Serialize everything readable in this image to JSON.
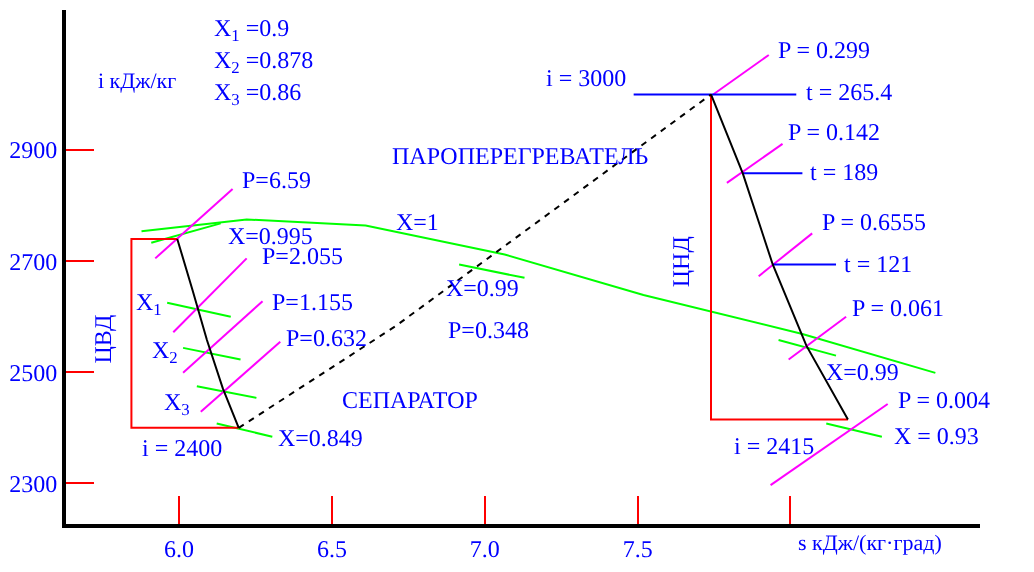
{
  "chart_data": {
    "type": "line",
    "xlabel": "s кДж/(кг·град)",
    "ylabel": "i кДж/кг",
    "xlim": [
      5.63,
      8.62
    ],
    "ylim": [
      2227,
      3152
    ],
    "xticks": [
      {
        "value": 6,
        "label": "6.0"
      },
      6.5,
      {
        "value": 7,
        "label": "7.0"
      },
      7.5,
      {
        "value": 8,
        "label": null
      }
    ],
    "yticks": [
      2300,
      2500,
      2700,
      2900
    ],
    "marker": "none",
    "series": [
      {
        "color": "#00ff00",
        "x": [
          5.877,
          6.221,
          6.61,
          7.065,
          7.519,
          8.039,
          8.474
        ],
        "values": [
          2754,
          2775,
          2764,
          2712,
          2639,
          2569,
          2499
        ]
      },
      {
        "color": "#00ff00",
        "x": [
          5.909,
          6.136,
          null,
          5.961,
          6.169,
          null,
          6.013,
          6.201,
          null,
          6.058,
          6.253,
          null,
          6.123,
          6.305,
          null,
          6.916,
          7.13,
          null,
          7.961,
          8.149,
          null,
          8.117,
          8.299
        ],
        "values": [
          2733,
          2768,
          null,
          2625,
          2600,
          null,
          2544,
          2523,
          null,
          2475,
          2454,
          null,
          2408,
          2384,
          null,
          2694,
          2670,
          null,
          2558,
          2530,
          null,
          2408,
          2384
        ]
      },
      {
        "color": "#ff00ff",
        "x": [
          5.922,
          6.175,
          null,
          5.981,
          6.221,
          null,
          6.013,
          6.273,
          null,
          6.071,
          6.331,
          null,
          7.747,
          7.929,
          null,
          7.792,
          7.974,
          null,
          7.896,
          8.071,
          null,
          7.994,
          8.182,
          null,
          7.935,
          8.318
        ],
        "values": [
          2705,
          2830,
          null,
          2572,
          2705,
          null,
          2499,
          2628,
          null,
          2429,
          2555,
          null,
          3000,
          3071,
          null,
          2841,
          2911,
          null,
          2673,
          2750,
          null,
          2523,
          2600,
          null,
          2297,
          2443
        ]
      },
      {
        "color": "#0000ff",
        "x": [
          7.487,
          8.019,
          null,
          7.844,
          8.039,
          null,
          7.942,
          8.149
        ],
        "values": [
          3000,
          3000,
          null,
          2858,
          2858,
          null,
          2694,
          2694
        ]
      },
      {
        "color": "#ff0000",
        "x": [
          5.994,
          5.844,
          5.844,
          6.195
        ],
        "values": [
          2740,
          2740,
          2400,
          2400
        ]
      },
      {
        "color": "#ff0000",
        "x": [
          7.74,
          7.74,
          8.188
        ],
        "values": [
          3000,
          2415,
          2415
        ]
      },
      {
        "color": "#000000",
        "x": [
          5.994,
          6.045,
          6.091,
          6.143,
          6.195
        ],
        "values": [
          2740,
          2646,
          2558,
          2471,
          2400
        ]
      },
      {
        "color": "#000000",
        "x": [
          7.74,
          7.844,
          7.942,
          8.052,
          8.188
        ],
        "values": [
          3000,
          2858,
          2694,
          2548,
          2415
        ]
      },
      {
        "color": "#000000",
        "line_style": "dotted",
        "x": [
          6.195,
          6.708,
          7.74
        ],
        "values": [
          2400,
          2583,
          3000
        ]
      }
    ],
    "annotations": [
      "X$_{1}$ =0.9",
      "X$_{2}$ =0.878",
      "X$_{3}$ =0.86",
      "ПАРОПЕРЕГРЕВАТЕЛЬ",
      "СЕПАРАТОР",
      {
        "text": "X=1",
        "x": 6.61,
        "y": 2764
      },
      {
        "text": "P=6.59",
        "x": 6.175,
        "y": 2830
      },
      {
        "text": "X=0.995",
        "x": 6.136,
        "y": 2768
      },
      {
        "text": "P=2.055",
        "x": 6.221,
        "y": 2705
      },
      {
        "text": "X$_{1}$",
        "x": 5.961,
        "y": 2625
      },
      {
        "text": "P=1.155",
        "x": 6.273,
        "y": 2628
      },
      {
        "text": "X$_{2}$",
        "x": 6.013,
        "y": 2544
      },
      {
        "text": "P=0.632",
        "x": 6.331,
        "y": 2555
      },
      {
        "text": "X$_{3}$",
        "x": 6.058,
        "y": 2475
      },
      {
        "text": "X=0.849",
        "x": 6.305,
        "y": 2384
      },
      {
        "text": "i = 2400",
        "x": 5.844,
        "y": 2400
      },
      {
        "text": "P=0.348",
        "x": 6.708,
        "y": 2583
      },
      {
        "text": "X=0.99",
        "x": 7.13,
        "y": 2670
      },
      {
        "text": "ЦВД",
        "x": 5.844,
        "y": 2558
      },
      {
        "text": "i = 3000",
        "x": 7.487,
        "y": 3000
      },
      {
        "text": "P = 0.299",
        "x": 7.929,
        "y": 3071
      },
      {
        "text": "t = 265.4",
        "x": 8.019,
        "y": 3000
      },
      {
        "text": "P = 0.142",
        "x": 7.974,
        "y": 2911
      },
      {
        "text": "t = 189",
        "x": 8.039,
        "y": 2858
      },
      {
        "text": "P = 0.6555",
        "x": 8.071,
        "y": 2750
      },
      {
        "text": "t = 121",
        "x": 8.149,
        "y": 2694
      },
      {
        "text": "ЦНД",
        "x": 7.74,
        "y": 2698
      },
      {
        "text": "P = 0.061",
        "x": 8.182,
        "y": 2600
      },
      {
        "text": "X=0.99",
        "x": 8.149,
        "y": 2530
      },
      {
        "text": "P = 0.004",
        "x": 8.318,
        "y": 2443
      },
      {
        "text": "X = 0.93",
        "x": 8.299,
        "y": 2384
      },
      {
        "text": "i = 2415",
        "x": 7.74,
        "y": 2415
      }
    ]
  }
}
